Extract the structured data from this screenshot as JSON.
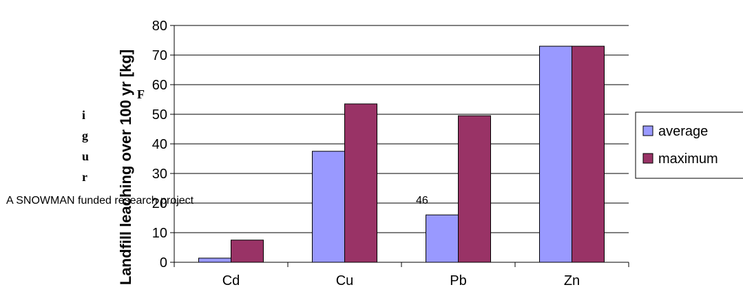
{
  "chart_data": {
    "type": "bar",
    "categories": [
      "Cd",
      "Cu",
      "Pb",
      "Zn"
    ],
    "series": [
      {
        "name": "average",
        "values": [
          1.4,
          37.5,
          16,
          73
        ]
      },
      {
        "name": "maximum",
        "values": [
          7.5,
          53.5,
          49.5,
          73
        ]
      }
    ],
    "ylabel": "Landfill leaching over 100 yr [kg]",
    "xlabel": "",
    "ylim": [
      0,
      80
    ],
    "yticks": [
      0,
      10,
      20,
      30,
      40,
      50,
      60,
      70,
      80
    ],
    "grid": true,
    "legend_position": "right",
    "colors": {
      "average": "#9999ff",
      "maximum": "#993366"
    }
  },
  "overlay": {
    "vertical_letters": [
      "F",
      "i",
      "g",
      "u",
      "r"
    ],
    "footer_left": "A SNOWMAN funded research project",
    "page_number": "46"
  }
}
